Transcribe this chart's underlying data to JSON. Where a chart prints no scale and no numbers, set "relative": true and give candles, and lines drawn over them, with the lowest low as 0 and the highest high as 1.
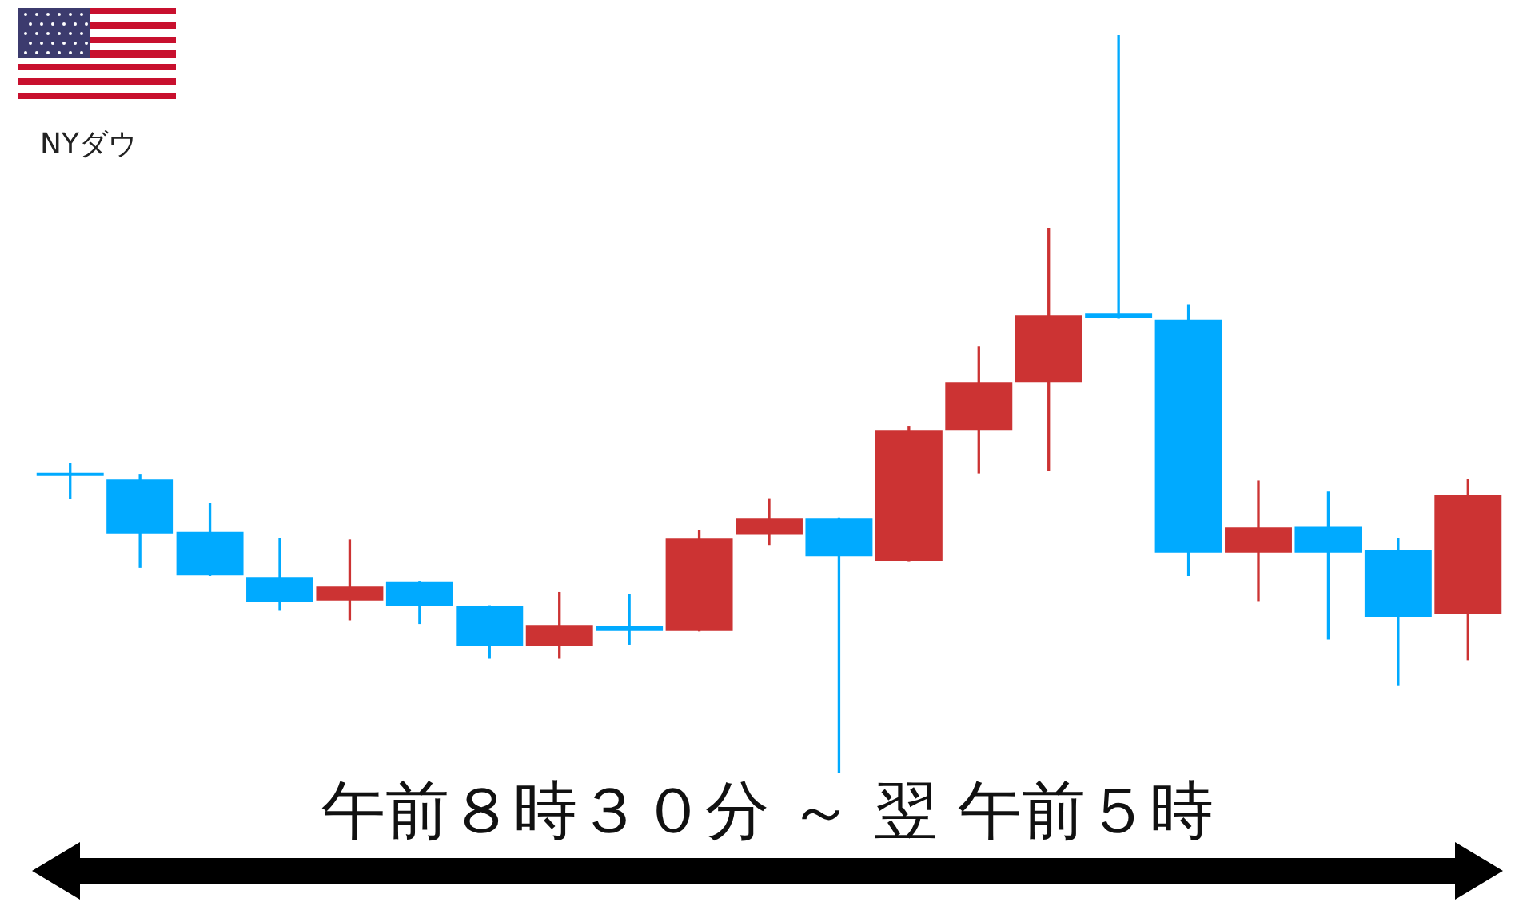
{
  "chart_data": {
    "type": "candlestick",
    "title": "NYダウ",
    "relative": true,
    "categories": [
      null,
      null,
      null,
      null,
      null,
      null,
      null,
      null,
      null,
      null,
      null,
      null,
      null,
      null,
      null,
      null,
      null,
      null,
      null,
      null,
      null
    ],
    "ohlc": [
      [
        0.405,
        0.42,
        0.372,
        0.403
      ],
      [
        0.398,
        0.405,
        0.279,
        0.325
      ],
      [
        0.327,
        0.366,
        0.268,
        0.268
      ],
      [
        0.266,
        0.318,
        0.221,
        0.232
      ],
      [
        0.234,
        0.316,
        0.208,
        0.253
      ],
      [
        0.26,
        0.26,
        0.203,
        0.227
      ],
      [
        0.227,
        0.227,
        0.156,
        0.173
      ],
      [
        0.173,
        0.245,
        0.156,
        0.201
      ],
      [
        0.199,
        0.242,
        0.175,
        0.193
      ],
      [
        0.193,
        0.329,
        0.193,
        0.318
      ],
      [
        0.323,
        0.372,
        0.31,
        0.346
      ],
      [
        0.346,
        0.346,
        0,
        0.294
      ],
      [
        0.288,
        0.47,
        0.288,
        0.465
      ],
      [
        0.465,
        0.578,
        0.407,
        0.53
      ],
      [
        0.53,
        0.738,
        0.411,
        0.621
      ],
      [
        0.623,
        1,
        0.617,
        0.617
      ],
      [
        0.615,
        0.634,
        0.268,
        0.299
      ],
      [
        0.299,
        0.396,
        0.234,
        0.333
      ],
      [
        0.335,
        0.381,
        0.182,
        0.299
      ],
      [
        0.303,
        0.318,
        0.119,
        0.212
      ],
      [
        0.216,
        0.398,
        0.154,
        0.377
      ]
    ],
    "colors": [
      "#00aaff",
      "#00aaff",
      "#00aaff",
      "#00aaff",
      "#cc3333",
      "#00aaff",
      "#00aaff",
      "#cc3333",
      "#00aaff",
      "#cc3333",
      "#cc3333",
      "#00aaff",
      "#cc3333",
      "#cc3333",
      "#cc3333",
      "#00aaff",
      "#00aaff",
      "#cc3333",
      "#00aaff",
      "#00aaff",
      "#cc3333"
    ],
    "annotations": [
      "午前８時３０分 ～ 翌 午前５時"
    ]
  }
}
